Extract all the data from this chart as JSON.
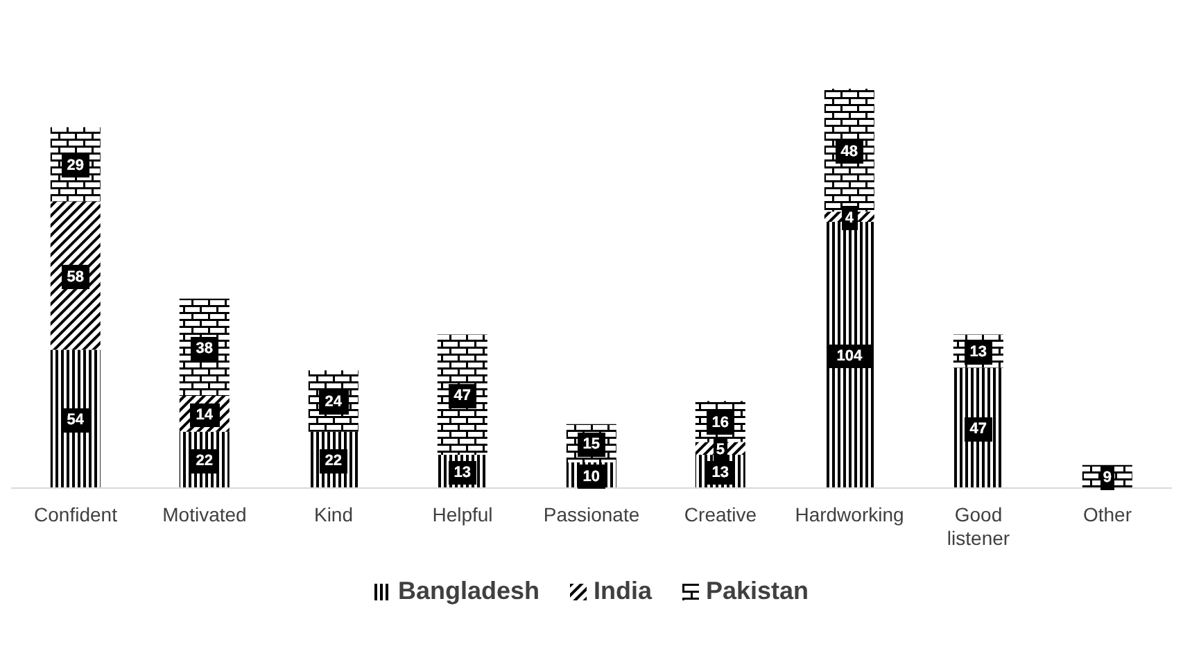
{
  "chart_data": {
    "type": "bar",
    "stacked": true,
    "data_labels": true,
    "legend": "bottom",
    "grid": false,
    "categories": [
      "Confident",
      "Motivated",
      "Kind",
      "Helpful",
      "Passionate",
      "Creative",
      "Hardworking",
      "Good listener",
      "Other"
    ],
    "series": [
      {
        "name": "Bangladesh",
        "color": "#000000",
        "values": [
          54,
          22,
          22,
          13,
          10,
          13,
          104,
          47,
          null
        ]
      },
      {
        "name": "India",
        "color": "#000000",
        "values": [
          58,
          14,
          null,
          null,
          null,
          5,
          4,
          null,
          null
        ]
      },
      {
        "name": "Pakistan",
        "color": "#000000",
        "values": [
          29,
          38,
          24,
          47,
          15,
          16,
          48,
          13,
          9
        ]
      }
    ]
  }
}
